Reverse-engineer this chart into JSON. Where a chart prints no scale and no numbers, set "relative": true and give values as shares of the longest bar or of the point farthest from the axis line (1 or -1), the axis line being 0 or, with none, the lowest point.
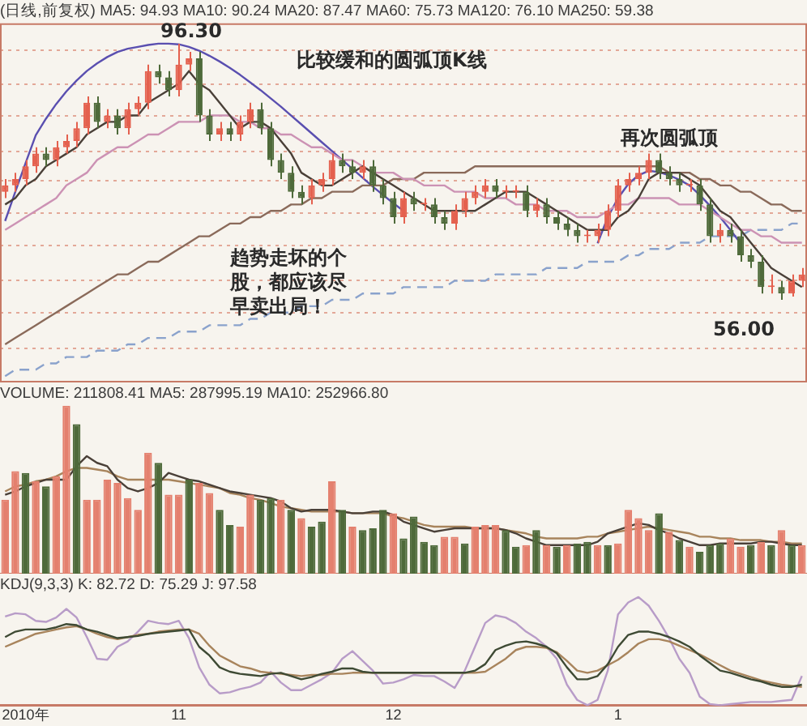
{
  "chart_data": [
    {
      "type": "candlestick",
      "subtitle": "(日线,前复权) MA5: 94.93 MA10: 90.24 MA20: 87.47 MA60: 75.73 MA120: 76.10 MA250: 59.38",
      "categories": [
        null,
        null,
        null,
        null,
        null,
        null,
        null,
        null,
        null,
        null,
        null,
        null,
        null,
        null,
        null,
        null,
        null,
        null,
        null,
        null,
        null,
        null,
        null,
        null,
        null,
        null,
        null,
        null,
        null,
        null,
        null,
        null,
        null,
        null,
        null,
        null,
        null,
        null,
        null,
        null,
        null,
        null,
        null,
        null,
        null,
        null,
        null,
        null,
        null,
        null,
        null,
        null,
        null,
        null,
        null,
        null,
        null,
        null,
        null,
        null,
        null,
        null,
        null,
        null,
        null,
        null,
        null,
        null,
        null,
        null,
        null,
        null,
        null,
        null,
        null,
        null,
        null,
        null,
        null
      ],
      "ohlc": [
        [
          73,
          75,
          72,
          74
        ],
        [
          74,
          76,
          73,
          75
        ],
        [
          75,
          78,
          74,
          77
        ],
        [
          77,
          80,
          76,
          79
        ],
        [
          79,
          80,
          77,
          78
        ],
        [
          78,
          81,
          77,
          80
        ],
        [
          80,
          82,
          79,
          81
        ],
        [
          81,
          84,
          80,
          83
        ],
        [
          83,
          88,
          82,
          87
        ],
        [
          87,
          88,
          83,
          84
        ],
        [
          84,
          86,
          83,
          85
        ],
        [
          85,
          86,
          82,
          83
        ],
        [
          83,
          87,
          82,
          86
        ],
        [
          86,
          88,
          85,
          87
        ],
        [
          87,
          93,
          86,
          92
        ],
        [
          92,
          93,
          90,
          91
        ],
        [
          91,
          92,
          88,
          89
        ],
        [
          89,
          96.3,
          88,
          93
        ],
        [
          93,
          95,
          92,
          94
        ],
        [
          94,
          95,
          84,
          85
        ],
        [
          85,
          86,
          81,
          82
        ],
        [
          82,
          84,
          81,
          83
        ],
        [
          83,
          84,
          81,
          82
        ],
        [
          82,
          85,
          81,
          84
        ],
        [
          84,
          87,
          83,
          86
        ],
        [
          86,
          87,
          82,
          83
        ],
        [
          83,
          84,
          77,
          78
        ],
        [
          78,
          79,
          75,
          76
        ],
        [
          76,
          77,
          72,
          73
        ],
        [
          73,
          74,
          71,
          72
        ],
        [
          72,
          75,
          71,
          74
        ],
        [
          74,
          76,
          73,
          75
        ],
        [
          75,
          79,
          74,
          78
        ],
        [
          78,
          79,
          76,
          77
        ],
        [
          77,
          78,
          75,
          76
        ],
        [
          76,
          78,
          75,
          77
        ],
        [
          77,
          78,
          73,
          74
        ],
        [
          74,
          75,
          71,
          72
        ],
        [
          72,
          73,
          68,
          69
        ],
        [
          69,
          73,
          68,
          72
        ],
        [
          72,
          73,
          70,
          71
        ],
        [
          71,
          72,
          70,
          71
        ],
        [
          71,
          72,
          68,
          69
        ],
        [
          69,
          70,
          67,
          68
        ],
        [
          68,
          71,
          67,
          70
        ],
        [
          70,
          73,
          69,
          72
        ],
        [
          72,
          74,
          71,
          73
        ],
        [
          73,
          75,
          72,
          74
        ],
        [
          74,
          75,
          72,
          73
        ],
        [
          73,
          74,
          72,
          73
        ],
        [
          73,
          74,
          72,
          73
        ],
        [
          73,
          74,
          69,
          70
        ],
        [
          70,
          72,
          69,
          71
        ],
        [
          71,
          72,
          68,
          69
        ],
        [
          69,
          70,
          67,
          68
        ],
        [
          68,
          69,
          66,
          67
        ],
        [
          67,
          68,
          65,
          66
        ],
        [
          66,
          67,
          65,
          66
        ],
        [
          66,
          68,
          65,
          67
        ],
        [
          67,
          71,
          66,
          70
        ],
        [
          70,
          75,
          69,
          74
        ],
        [
          74,
          76,
          73,
          75
        ],
        [
          75,
          77,
          74,
          76
        ],
        [
          76,
          79,
          75,
          78
        ],
        [
          78,
          79,
          75,
          76
        ],
        [
          76,
          77,
          74,
          75
        ],
        [
          75,
          76,
          73,
          74
        ],
        [
          74,
          75,
          73,
          74
        ],
        [
          74,
          75,
          70,
          71
        ],
        [
          71,
          72,
          65,
          66
        ],
        [
          66,
          68,
          65,
          67
        ],
        [
          67,
          68,
          65,
          66
        ],
        [
          66,
          67,
          62,
          63
        ],
        [
          63,
          64,
          61,
          62
        ],
        [
          62,
          63,
          57,
          58
        ],
        [
          58,
          60,
          57,
          58
        ],
        [
          58,
          59,
          56,
          57
        ],
        [
          57,
          60,
          56.5,
          59
        ],
        [
          59,
          61,
          58,
          60
        ]
      ],
      "colors": [
        "#e4604e",
        "#e4604e",
        "#e4604e",
        "#e4604e",
        "#4e6a3a",
        "#e4604e",
        "#e4604e",
        "#e4604e",
        "#e4604e",
        "#4e6a3a",
        "#e4604e",
        "#4e6a3a",
        "#e4604e",
        "#e4604e",
        "#e4604e",
        "#4e6a3a",
        "#4e6a3a",
        "#e4604e",
        "#e4604e",
        "#4e6a3a",
        "#4e6a3a",
        "#e4604e",
        "#4e6a3a",
        "#e4604e",
        "#e4604e",
        "#4e6a3a",
        "#4e6a3a",
        "#4e6a3a",
        "#4e6a3a",
        "#4e6a3a",
        "#e4604e",
        "#e4604e",
        "#e4604e",
        "#4e6a3a",
        "#4e6a3a",
        "#e4604e",
        "#4e6a3a",
        "#4e6a3a",
        "#4e6a3a",
        "#e4604e",
        "#4e6a3a",
        "#e4604e",
        "#4e6a3a",
        "#4e6a3a",
        "#e4604e",
        "#e4604e",
        "#e4604e",
        "#e4604e",
        "#4e6a3a",
        "#e4604e",
        "#e4604e",
        "#4e6a3a",
        "#e4604e",
        "#4e6a3a",
        "#4e6a3a",
        "#4e6a3a",
        "#4e6a3a",
        "#e4604e",
        "#e4604e",
        "#e4604e",
        "#e4604e",
        "#e4604e",
        "#e4604e",
        "#e4604e",
        "#4e6a3a",
        "#4e6a3a",
        "#4e6a3a",
        "#e4604e",
        "#4e6a3a",
        "#4e6a3a",
        "#e4604e",
        "#4e6a3a",
        "#4e6a3a",
        "#4e6a3a",
        "#4e6a3a",
        "#e4604e",
        "#4e6a3a",
        "#e4604e",
        "#e4604e"
      ],
      "series": [
        {
          "type": "line",
          "color": "#4a4038",
          "values": [
            71,
            72,
            74,
            75,
            77,
            78,
            79,
            80,
            82,
            83,
            84,
            84,
            85,
            85,
            87,
            88,
            89,
            90,
            92,
            90,
            89,
            87,
            85,
            83,
            84,
            84,
            83,
            81,
            79,
            76,
            75,
            74,
            74,
            75,
            76,
            77,
            76,
            75,
            74,
            73,
            72,
            71,
            70,
            70,
            70,
            70,
            70,
            71,
            72,
            73,
            73,
            73,
            72,
            71,
            70,
            69,
            68,
            67,
            67,
            67,
            69,
            70,
            72,
            75,
            76,
            76,
            76,
            75,
            74,
            72,
            70,
            69,
            67,
            65,
            63,
            61,
            60,
            59,
            58
          ]
        },
        {
          "type": "line",
          "color": "#cc92b4",
          "values": [
            67,
            68,
            69,
            70,
            71,
            72,
            74,
            75,
            76,
            78,
            79,
            80,
            80,
            81,
            82,
            82,
            83,
            84,
            84,
            84,
            85,
            85,
            85,
            84,
            84,
            83,
            83,
            82,
            82,
            81,
            80,
            80,
            79,
            78,
            78,
            77,
            76,
            76,
            76,
            75,
            75,
            74,
            74,
            74,
            73,
            73,
            73,
            72,
            72,
            72,
            71,
            71,
            71,
            70,
            70,
            70,
            69,
            69,
            69,
            70,
            71,
            71,
            72,
            72,
            72,
            72,
            71,
            71,
            71,
            70,
            69,
            68,
            67,
            67,
            66,
            66,
            65,
            65,
            65
          ]
        },
        {
          "type": "line",
          "color": "#8a6a5a",
          "values": [
            49,
            50,
            51,
            52,
            53,
            54,
            55,
            56,
            57,
            58,
            59,
            60,
            60,
            61,
            62,
            62,
            63,
            64,
            65,
            66,
            66,
            67,
            68,
            68,
            69,
            69,
            70,
            70,
            71,
            71,
            72,
            72,
            73,
            73,
            73,
            74,
            74,
            74,
            75,
            75,
            75,
            76,
            76,
            76,
            76,
            76,
            77,
            77,
            77,
            77,
            77,
            77,
            77,
            77,
            77,
            77,
            77,
            77,
            77,
            77,
            77,
            77,
            77,
            77,
            77,
            76,
            76,
            76,
            75,
            75,
            74,
            74,
            73,
            73,
            72,
            71,
            71,
            70,
            70
          ]
        },
        {
          "type": "line",
          "color": "#5a4fb0",
          "values": [
            68.4,
            73,
            77.5,
            81.9,
            84.5,
            86.8,
            88.8,
            90.5,
            92,
            93.2,
            94.2,
            95,
            95.5,
            95.8,
            96.1,
            96.3,
            96.3,
            96.2,
            95.8,
            95.2,
            94.4,
            93.5,
            92.5,
            91.4,
            90.2,
            89,
            87.7,
            86.4,
            85,
            83.6,
            82.2,
            80.8,
            79.4,
            78,
            76.6,
            75.2,
            73.8,
            72.5,
            71.2,
            70,
            null,
            null,
            null,
            null,
            null,
            null,
            null,
            null,
            null,
            null,
            null,
            null,
            null,
            null,
            null,
            null,
            null,
            null,
            null,
            null,
            null,
            null,
            null,
            null,
            null,
            null,
            null,
            null,
            null,
            null,
            null,
            null,
            null,
            null,
            null,
            null,
            null,
            null,
            null
          ]
        },
        {
          "type": "line",
          "color": "#5a4fb0",
          "values": [
            null,
            null,
            null,
            null,
            null,
            null,
            null,
            null,
            null,
            null,
            null,
            null,
            null,
            null,
            null,
            null,
            null,
            null,
            null,
            null,
            null,
            null,
            null,
            null,
            null,
            null,
            null,
            null,
            null,
            null,
            null,
            null,
            null,
            null,
            null,
            null,
            null,
            null,
            null,
            null,
            null,
            null,
            null,
            null,
            null,
            null,
            null,
            null,
            null,
            null,
            null,
            null,
            null,
            null,
            null,
            null,
            null,
            null,
            64.9,
            69,
            72,
            74.2,
            75.6,
            76.3,
            76.1,
            75.6,
            74.9,
            74,
            72.5,
            70.8,
            69,
            67,
            64.9,
            null,
            null,
            null,
            null,
            null,
            null
          ]
        },
        {
          "type": "line",
          "color": "#8aa2cc",
          "line_style": "dashed",
          "values": [
            44,
            45,
            45,
            45,
            46,
            46,
            47,
            47,
            47,
            48,
            48,
            48,
            49,
            49,
            50,
            50,
            50,
            51,
            51,
            51,
            52,
            52,
            52,
            52,
            53,
            53,
            54,
            54,
            54,
            55,
            55,
            55,
            56,
            56,
            56,
            57,
            57,
            57,
            57,
            58,
            58,
            58,
            58,
            58,
            59,
            59,
            59,
            59,
            60,
            60,
            60,
            60,
            60,
            61,
            61,
            61,
            61,
            62,
            62,
            62,
            62,
            63,
            63,
            64,
            64,
            64,
            65,
            65,
            65,
            66,
            66,
            66,
            66,
            67,
            67,
            67,
            67,
            68,
            68
          ]
        }
      ],
      "ylim": [
        43,
        99.5
      ],
      "yticks": [
        {
          "value": 95.3,
          "label": null
        },
        {
          "value": 89.9,
          "label": null
        },
        {
          "value": 84.9,
          "label": null
        },
        {
          "value": 79.3,
          "label": null
        },
        {
          "value": 74.7,
          "label": null
        },
        {
          "value": 69.7,
          "label": null
        },
        {
          "value": 64.6,
          "label": null
        },
        {
          "value": 59,
          "label": null
        },
        {
          "value": 54,
          "label": null
        },
        {
          "value": 48.4,
          "label": null
        }
      ],
      "grid": "y",
      "marker": "none",
      "tick_labels": false,
      "annotations": [
        "96.30",
        "比较缓和的圆弧顶K线",
        "再次圆弧顶",
        "趋势走坏的个股，都应该尽早卖出局！",
        "56.00"
      ]
    },
    {
      "type": "bar",
      "subtitle": "VOLUME: 211808.41 MA5: 287995.19 MA10: 252966.80",
      "relative": true,
      "tick_labels": false,
      "marker": "none",
      "categories": [
        null,
        null,
        null,
        null,
        null,
        null,
        null,
        null,
        null,
        null,
        null,
        null,
        null,
        null,
        null,
        null,
        null,
        null,
        null,
        null,
        null,
        null,
        null,
        null,
        null,
        null,
        null,
        null,
        null,
        null,
        null,
        null,
        null,
        null,
        null,
        null,
        null,
        null,
        null,
        null,
        null,
        null,
        null,
        null,
        null,
        null,
        null,
        null,
        null,
        null,
        null,
        null,
        null,
        null,
        null,
        null,
        null,
        null,
        null,
        null,
        null,
        null,
        null,
        null,
        null,
        null,
        null,
        null,
        null,
        null,
        null,
        null,
        null,
        null,
        null,
        null,
        null,
        null,
        null
      ],
      "series": [
        {
          "values": [
            0.44,
            0.61,
            0.6,
            0.55,
            0.52,
            0.58,
            1,
            0.89,
            0.44,
            0.44,
            0.56,
            0.54,
            0.45,
            0.38,
            0.72,
            0.66,
            0.47,
            0.47,
            0.56,
            0.54,
            0.48,
            0.38,
            0.29,
            0.28,
            0.47,
            0.44,
            0.45,
            0.44,
            0.38,
            0.33,
            0.28,
            0.31,
            0.55,
            0.38,
            0.28,
            0.26,
            0.27,
            0.38,
            0.36,
            0.21,
            0.34,
            0.19,
            0.17,
            0.22,
            0.22,
            0.18,
            0.28,
            0.29,
            0.29,
            0.26,
            0.16,
            0.17,
            0.26,
            0.17,
            0.16,
            0.17,
            0.18,
            0.19,
            0.17,
            0.17,
            0.18,
            0.38,
            0.33,
            0.26,
            0.36,
            0.25,
            0.2,
            0.16,
            0.13,
            0.17,
            0.18,
            0.21,
            0.16,
            0.17,
            0.19,
            0.17,
            0.26,
            0.17,
            0.17
          ],
          "colors": [
            "#e4806e",
            "#e4806e",
            "#4e6a3a",
            "#e4806e",
            "#4e6a3a",
            "#e4806e",
            "#e4806e",
            "#4e6a3a",
            "#e4806e",
            "#e4806e",
            "#e4806e",
            "#e4806e",
            "#e4806e",
            "#e4806e",
            "#e4806e",
            "#4e6a3a",
            "#e4806e",
            "#e4806e",
            "#4e6a3a",
            "#e4806e",
            "#e4806e",
            "#4e6a3a",
            "#4e6a3a",
            "#e4806e",
            "#e4806e",
            "#4e6a3a",
            "#4e6a3a",
            "#e4806e",
            "#4e6a3a",
            "#e4806e",
            "#4e6a3a",
            "#4e6a3a",
            "#e4806e",
            "#4e6a3a",
            "#e4806e",
            "#4e6a3a",
            "#4e6a3a",
            "#4e6a3a",
            "#e4806e",
            "#4e6a3a",
            "#4e6a3a",
            "#4e6a3a",
            "#4e6a3a",
            "#e4806e",
            "#e4806e",
            "#4e6a3a",
            "#e4806e",
            "#e4806e",
            "#e4806e",
            "#4e6a3a",
            "#4e6a3a",
            "#e4806e",
            "#4e6a3a",
            "#e4806e",
            "#4e6a3a",
            "#e4806e",
            "#4e6a3a",
            "#4e6a3a",
            "#e4806e",
            "#4e6a3a",
            "#e4806e",
            "#e4806e",
            "#e4806e",
            "#e4806e",
            "#4e6a3a",
            "#e4806e",
            "#4e6a3a",
            "#e4806e",
            "#4e6a3a",
            "#4e6a3a",
            "#4e6a3a",
            "#e4806e",
            "#e4806e",
            "#4e6a3a",
            "#e4806e",
            "#4e6a3a",
            "#e4806e",
            "#4e6a3a",
            "#e4806e"
          ]
        },
        {
          "type": "line",
          "color": "#4a4038",
          "values": [
            0.47,
            0.49,
            0.52,
            0.54,
            0.56,
            0.56,
            0.56,
            0.64,
            0.7,
            0.66,
            0.64,
            0.56,
            0.51,
            0.49,
            0.51,
            0.54,
            0.6,
            0.58,
            0.56,
            0.55,
            0.53,
            0.51,
            0.49,
            0.48,
            0.47,
            0.46,
            0.45,
            0.43,
            0.39,
            0.37,
            0.38,
            0.38,
            0.38,
            0.37,
            0.36,
            0.36,
            0.37,
            0.37,
            0.35,
            0.31,
            0.29,
            0.27,
            0.25,
            0.26,
            0.27,
            0.27,
            0.27,
            0.27,
            0.27,
            0.26,
            0.24,
            0.21,
            0.19,
            0.17,
            0.17,
            0.17,
            0.17,
            0.17,
            0.19,
            0.24,
            0.26,
            0.28,
            0.3,
            0.29,
            0.26,
            0.24,
            0.21,
            0.19,
            0.17,
            0.17,
            0.18,
            0.18,
            0.18,
            0.18,
            0.19,
            0.19,
            0.18,
            0.17,
            0.17
          ]
        },
        {
          "type": "line",
          "color": "#a8845c",
          "values": [
            0.49,
            0.52,
            0.53,
            0.55,
            0.56,
            0.58,
            0.61,
            0.63,
            0.63,
            0.62,
            0.61,
            0.58,
            0.56,
            0.56,
            0.56,
            0.56,
            0.56,
            0.55,
            0.54,
            0.53,
            0.52,
            0.51,
            0.48,
            0.47,
            0.45,
            0.44,
            0.42,
            0.4,
            0.39,
            0.38,
            0.37,
            0.37,
            0.37,
            0.37,
            0.36,
            0.36,
            0.36,
            0.36,
            0.34,
            0.33,
            0.31,
            0.29,
            0.28,
            0.28,
            0.28,
            0.28,
            0.27,
            0.27,
            0.27,
            0.26,
            0.25,
            0.24,
            0.22,
            0.21,
            0.21,
            0.21,
            0.21,
            0.22,
            0.22,
            0.24,
            0.25,
            0.26,
            0.27,
            0.28,
            0.27,
            0.26,
            0.25,
            0.24,
            0.22,
            0.22,
            0.21,
            0.21,
            0.2,
            0.2,
            0.2,
            0.19,
            0.19,
            0.18,
            0.18
          ]
        }
      ]
    },
    {
      "type": "line",
      "subtitle": "KDJ(9,3,3) K: 82.72 D: 75.29 J: 97.58",
      "relative": true,
      "marker": "none",
      "categories": [
        null,
        null,
        "2010年",
        null,
        null,
        null,
        null,
        null,
        null,
        null,
        null,
        null,
        null,
        null,
        null,
        null,
        null,
        "11",
        null,
        null,
        null,
        null,
        null,
        null,
        null,
        null,
        null,
        null,
        null,
        null,
        null,
        null,
        null,
        null,
        null,
        null,
        null,
        null,
        "12",
        null,
        null,
        null,
        null,
        null,
        null,
        null,
        null,
        null,
        null,
        null,
        null,
        null,
        null,
        null,
        null,
        null,
        null,
        null,
        null,
        null,
        "1",
        null,
        null,
        null,
        null,
        null,
        null,
        null,
        null,
        null,
        null,
        null,
        null,
        null,
        null,
        null,
        null,
        null,
        null
      ],
      "series": [
        {
          "color": "#3e4a34",
          "values": [
            0.63,
            0.68,
            0.7,
            0.7,
            0.7,
            0.72,
            0.75,
            0.74,
            0.7,
            0.68,
            0.65,
            0.62,
            0.63,
            0.64,
            0.66,
            0.67,
            0.68,
            0.69,
            0.7,
            0.54,
            0.46,
            0.35,
            0.31,
            0.29,
            0.28,
            0.27,
            0.29,
            0.3,
            0.27,
            0.24,
            0.26,
            0.29,
            0.31,
            0.34,
            0.34,
            0.31,
            0.3,
            0.3,
            0.3,
            0.3,
            0.3,
            0.3,
            0.3,
            0.3,
            0.3,
            0.3,
            0.32,
            0.38,
            0.51,
            0.55,
            0.58,
            0.59,
            0.57,
            0.54,
            0.48,
            0.35,
            0.24,
            0.24,
            0.27,
            0.38,
            0.54,
            0.65,
            0.68,
            0.68,
            0.66,
            0.63,
            0.59,
            0.54,
            0.46,
            0.39,
            0.32,
            0.3,
            0.27,
            0.24,
            0.22,
            0.19,
            0.17,
            0.17,
            0.19
          ]
        },
        {
          "color": "#a8845c",
          "values": [
            0.54,
            0.58,
            0.62,
            0.66,
            0.68,
            0.7,
            0.72,
            0.73,
            0.7,
            0.66,
            0.63,
            0.61,
            0.63,
            0.65,
            0.66,
            0.68,
            0.69,
            0.7,
            0.7,
            0.66,
            0.55,
            0.46,
            0.41,
            0.36,
            0.34,
            0.31,
            0.3,
            0.29,
            0.28,
            0.27,
            0.28,
            0.28,
            0.29,
            0.29,
            0.3,
            0.3,
            0.3,
            0.3,
            0.3,
            0.3,
            0.3,
            0.3,
            0.3,
            0.3,
            0.3,
            0.3,
            0.3,
            0.31,
            0.37,
            0.43,
            0.51,
            0.54,
            0.54,
            0.53,
            0.49,
            0.41,
            0.32,
            0.3,
            0.32,
            0.37,
            0.42,
            0.49,
            0.57,
            0.61,
            0.61,
            0.59,
            0.55,
            0.51,
            0.47,
            0.42,
            0.37,
            0.32,
            0.29,
            0.26,
            0.23,
            0.21,
            0.19,
            0.18,
            0.17
          ]
        },
        {
          "color": "#b89cc8",
          "values": [
            0.82,
            0.85,
            0.84,
            0.78,
            0.77,
            0.81,
            0.89,
            0.81,
            0.63,
            0.43,
            0.42,
            0.54,
            0.59,
            0.68,
            0.78,
            0.76,
            0.75,
            0.78,
            0.62,
            0.35,
            0.19,
            0.11,
            0.12,
            0.15,
            0.17,
            0.21,
            0.31,
            0.21,
            0.14,
            0.14,
            0.19,
            0.24,
            0.3,
            0.43,
            0.5,
            0.41,
            0.32,
            0.2,
            0.21,
            0.24,
            0.28,
            0.27,
            0.27,
            0.22,
            0.16,
            0.32,
            0.54,
            0.76,
            0.83,
            0.81,
            0.76,
            0.68,
            0.62,
            0.54,
            0.43,
            0.19,
            0.05,
            0,
            0.05,
            0.32,
            0.84,
            0.95,
            1,
            0.92,
            0.78,
            0.62,
            0.43,
            0.3,
            0.08,
            0.01,
            0,
            0.01,
            0.02,
            0.03,
            0.03,
            0.03,
            0.04,
            0.05,
            0.27
          ]
        }
      ]
    }
  ]
}
